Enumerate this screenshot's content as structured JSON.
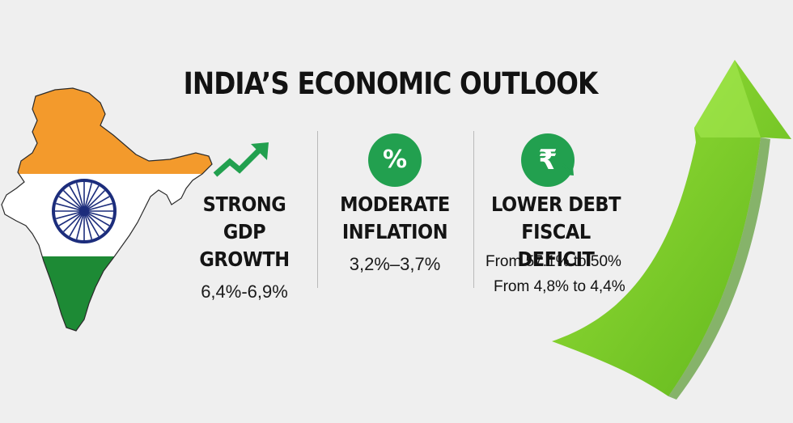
{
  "title": "INDIA’S ECONOMIC OUTLOOK",
  "metrics": [
    {
      "label_line1": "STRONG",
      "label_line2": "GDP GROWTH",
      "value": "6,4%-6,9%",
      "icon": "trend-up-arrow-icon"
    },
    {
      "label_line1": "MODERATE",
      "label_line2": "INFLATION",
      "value": "3,2%–3,7%",
      "icon": "percent-icon",
      "icon_text": "%"
    },
    {
      "label_line1": "LOWER DEBT",
      "label_line2": "FISCAL DEFICIT",
      "value_line1": "From 57.1% to 50%",
      "value_line2": "From 4,8% to 4,4%",
      "icon": "rupee-down-icon",
      "icon_text": "₹"
    }
  ],
  "colors": {
    "saffron": "#f39a2c",
    "white": "#ffffff",
    "green": "#1d8a35",
    "chakra_blue": "#1c2d7c",
    "icon_green": "#22a04f",
    "arrow_green": "#7ed321"
  },
  "illustrations": [
    "india-map-flag",
    "big-growth-arrow"
  ]
}
